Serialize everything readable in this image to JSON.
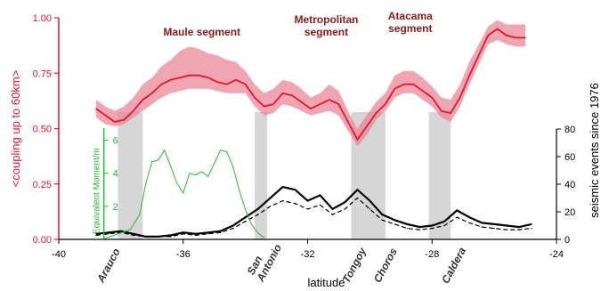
{
  "chart_data": {
    "type": "line",
    "xlabel": "latitude",
    "xlim": [
      -40,
      -24
    ],
    "x_ticks": [
      "-40",
      "-36",
      "-32",
      "-28",
      "-24"
    ],
    "y_left": {
      "label": "<coupling up to 60km>",
      "ylim": [
        0,
        1
      ],
      "ticks": [
        "0.00",
        "0.25",
        "0.50",
        "0.75",
        "1.00"
      ],
      "color": "#e8142d"
    },
    "y_right": {
      "label": "seismic events since 1976",
      "ylim": [
        0,
        80
      ],
      "ticks": [
        "0",
        "20",
        "40",
        "60",
        "80"
      ]
    },
    "y_inset": {
      "label": "Equivalent Moment/m",
      "ticks": [
        "2",
        "4",
        "6"
      ],
      "color": "#22c02a"
    },
    "segments": [
      "Maule segment",
      "Metropolitan segment",
      "Atacama segment"
    ],
    "places": [
      {
        "name": "Arauco",
        "lat": -38.3
      },
      {
        "name": "San Antonio",
        "lat": -33.6
      },
      {
        "name": "Tongoy",
        "lat": -30.4
      },
      {
        "name": "Choros",
        "lat": -29.4
      },
      {
        "name": "Caldera",
        "lat": -27.2
      }
    ],
    "shaded_bands": [
      [
        -38.1,
        -37.3
      ],
      [
        -33.7,
        -33.3
      ],
      [
        -30.6,
        -29.5
      ],
      [
        -28.1,
        -27.4
      ]
    ],
    "series": [
      {
        "axis": "left",
        "style": "mean-with-band",
        "color": "#e8142d",
        "x": [
          -38.8,
          -38.5,
          -38.2,
          -37.9,
          -37.6,
          -37.3,
          -37.0,
          -36.7,
          -36.4,
          -36.1,
          -35.8,
          -35.5,
          -35.2,
          -34.9,
          -34.6,
          -34.3,
          -34.0,
          -33.7,
          -33.4,
          -33.1,
          -32.8,
          -32.5,
          -32.2,
          -31.9,
          -31.6,
          -31.3,
          -31.0,
          -30.7,
          -30.4,
          -30.1,
          -29.8,
          -29.5,
          -29.2,
          -28.9,
          -28.6,
          -28.3,
          -28.0,
          -27.7,
          -27.4,
          -27.1,
          -26.8,
          -26.5,
          -26.2,
          -25.9,
          -25.6,
          -25.3,
          -25.0
        ],
        "mean": [
          0.59,
          0.56,
          0.53,
          0.54,
          0.58,
          0.63,
          0.66,
          0.7,
          0.72,
          0.73,
          0.74,
          0.74,
          0.73,
          0.71,
          0.7,
          0.72,
          0.7,
          0.64,
          0.6,
          0.61,
          0.66,
          0.65,
          0.62,
          0.59,
          0.61,
          0.63,
          0.61,
          0.53,
          0.45,
          0.51,
          0.57,
          0.61,
          0.68,
          0.7,
          0.7,
          0.67,
          0.64,
          0.58,
          0.57,
          0.64,
          0.74,
          0.83,
          0.92,
          0.95,
          0.92,
          0.91,
          0.91
        ],
        "lower": [
          0.55,
          0.52,
          0.51,
          0.52,
          0.55,
          0.58,
          0.61,
          0.64,
          0.66,
          0.67,
          0.68,
          0.68,
          0.68,
          0.67,
          0.66,
          0.66,
          0.66,
          0.6,
          0.56,
          0.57,
          0.61,
          0.6,
          0.58,
          0.56,
          0.57,
          0.58,
          0.56,
          0.49,
          0.42,
          0.47,
          0.54,
          0.58,
          0.64,
          0.66,
          0.66,
          0.63,
          0.6,
          0.55,
          0.53,
          0.6,
          0.7,
          0.79,
          0.88,
          0.9,
          0.88,
          0.87,
          0.87
        ],
        "upper": [
          0.63,
          0.6,
          0.58,
          0.6,
          0.64,
          0.7,
          0.73,
          0.78,
          0.81,
          0.85,
          0.87,
          0.86,
          0.84,
          0.83,
          0.81,
          0.8,
          0.76,
          0.7,
          0.66,
          0.68,
          0.72,
          0.71,
          0.68,
          0.64,
          0.66,
          0.7,
          0.67,
          0.58,
          0.5,
          0.56,
          0.62,
          0.66,
          0.74,
          0.76,
          0.76,
          0.73,
          0.69,
          0.64,
          0.63,
          0.7,
          0.8,
          0.88,
          0.96,
          0.99,
          0.97,
          0.97,
          0.97
        ]
      },
      {
        "axis": "inset",
        "color": "#22c02a",
        "x": [
          -38.6,
          -38.3,
          -38.0,
          -37.7,
          -37.4,
          -37.2,
          -37.0,
          -36.8,
          -36.6,
          -36.4,
          -36.2,
          -36.0,
          -35.8,
          -35.6,
          -35.4,
          -35.2,
          -35.0,
          -34.8,
          -34.6,
          -34.4,
          -34.2,
          -34.0,
          -33.8,
          -33.6,
          -33.4
        ],
        "y": [
          0.0,
          0.2,
          0.4,
          0.6,
          1.5,
          3.4,
          4.7,
          4.8,
          5.4,
          4.4,
          3.4,
          2.8,
          4.0,
          3.9,
          4.1,
          3.8,
          4.6,
          5.4,
          5.3,
          4.4,
          3.0,
          1.8,
          0.9,
          0.4,
          0.1
        ]
      },
      {
        "axis": "right",
        "style": "solid",
        "color": "#000000",
        "x": [
          -38.8,
          -38.4,
          -38.0,
          -37.6,
          -37.2,
          -36.8,
          -36.4,
          -36.0,
          -35.6,
          -35.2,
          -34.8,
          -34.4,
          -34.0,
          -33.6,
          -33.2,
          -32.8,
          -32.4,
          -32.0,
          -31.6,
          -31.2,
          -30.8,
          -30.4,
          -30.0,
          -29.6,
          -29.2,
          -28.8,
          -28.4,
          -28.0,
          -27.6,
          -27.2,
          -26.8,
          -26.4,
          -26.0,
          -25.6,
          -25.2,
          -24.8
        ],
        "y": [
          4,
          5,
          6,
          4,
          2,
          2,
          3,
          5,
          4,
          5,
          6,
          10,
          16,
          22,
          30,
          38,
          36,
          28,
          32,
          22,
          27,
          36,
          28,
          18,
          14,
          11,
          9,
          10,
          13,
          21,
          16,
          12,
          11,
          10,
          9,
          11
        ]
      },
      {
        "axis": "right",
        "style": "dashed",
        "color": "#000000",
        "x": [
          -38.8,
          -38.4,
          -38.0,
          -37.6,
          -37.2,
          -36.8,
          -36.4,
          -36.0,
          -35.6,
          -35.2,
          -34.8,
          -34.4,
          -34.0,
          -33.6,
          -33.2,
          -32.8,
          -32.4,
          -32.0,
          -31.6,
          -31.2,
          -30.8,
          -30.4,
          -30.0,
          -29.6,
          -29.2,
          -28.8,
          -28.4,
          -28.0,
          -27.6,
          -27.2,
          -26.8,
          -26.4,
          -26.0,
          -25.6,
          -25.2,
          -24.8
        ],
        "y": [
          3,
          4,
          5,
          3,
          2,
          2,
          2,
          4,
          3,
          4,
          5,
          8,
          13,
          18,
          24,
          28,
          26,
          22,
          25,
          18,
          22,
          30,
          22,
          14,
          11,
          8,
          7,
          8,
          10,
          16,
          12,
          9,
          8,
          7,
          7,
          8
        ]
      }
    ]
  }
}
